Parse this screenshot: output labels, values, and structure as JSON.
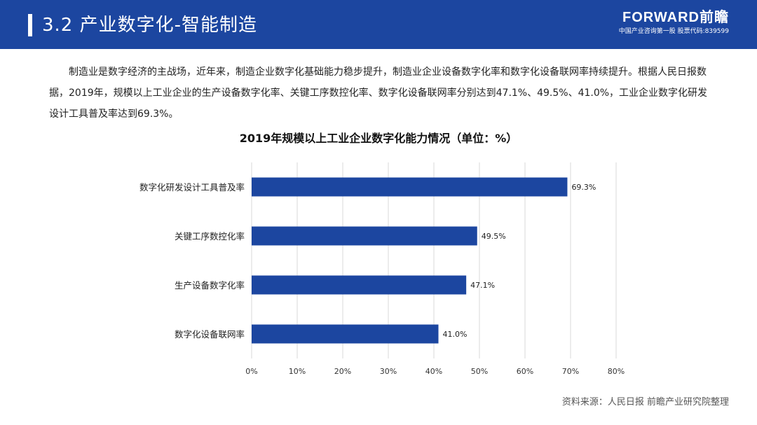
{
  "header": {
    "title": "3.2 产业数字化-智能制造",
    "brand_name": "FORWARD前瞻",
    "brand_sub": "中国产业咨询第一股 股票代码:839599"
  },
  "intro_text": "制造业是数字经济的主战场，近年来，制造企业数字化基础能力稳步提升，制造业企业设备数字化率和数字化设备联网率持续提升。根据人民日报数据，2019年，规模以上工业企业的生产设备数字化率、关键工序数控化率、数字化设备联网率分别达到47.1%、49.5%、41.0%，工业企业数字化研发设计工具普及率达到69.3%。",
  "colors": {
    "header_bg": "#1c46a0",
    "bar": "#1c46a0",
    "grid": "#d9d9d9"
  },
  "chart_data": {
    "type": "bar",
    "orientation": "horizontal",
    "title": "2019年规模以上工业企业数字化能力情况（单位：%）",
    "categories": [
      "数字化研发设计工具普及率",
      "关键工序数控化率",
      "生产设备数字化率",
      "数字化设备联网率"
    ],
    "values": [
      69.3,
      49.5,
      47.1,
      41.0
    ],
    "value_labels": [
      "69.3%",
      "49.5%",
      "47.1%",
      "41.0%"
    ],
    "xlim": [
      0,
      80
    ],
    "x_ticks": [
      "0%",
      "10%",
      "20%",
      "30%",
      "40%",
      "50%",
      "60%",
      "70%",
      "80%"
    ],
    "grid": "vertical",
    "xlabel": "",
    "ylabel": ""
  },
  "source": "资料来源：人民日报 前瞻产业研究院整理"
}
